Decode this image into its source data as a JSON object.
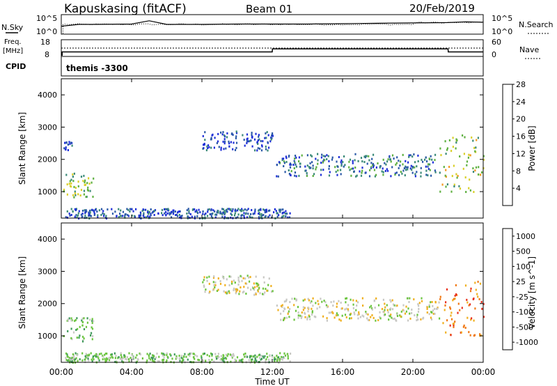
{
  "header": {
    "station": "Kapuskasing (fitACF)",
    "beam": "Beam 01",
    "date": "20/Feb/2019"
  },
  "strip_nsky": {
    "left_label": "N.Sky",
    "right_label": "N.Search",
    "left_ticks": [
      "10^5",
      "10^0"
    ],
    "right_ticks": [
      "10^5",
      "10^0"
    ]
  },
  "strip_freq": {
    "left_label_line1": "Freq.",
    "left_label_line2": "[MHz]",
    "cpid_label": "CPID",
    "right_label": "Nave",
    "left_ticks": [
      "18",
      "8"
    ],
    "right_ticks": [
      "60",
      "0"
    ],
    "cpid_text": "themis -3300"
  },
  "x_axis": {
    "ticks": [
      "00:00",
      "04:00",
      "08:00",
      "12:00",
      "16:00",
      "20:00",
      "00:00"
    ],
    "label": "Time UT"
  },
  "power_panel": {
    "ylabel": "Slant Range [km]",
    "y_ticks": [
      "1000",
      "2000",
      "3000",
      "4000"
    ],
    "colorbar_label": "Power [dB]",
    "colorbar_ticks": [
      "4",
      "8",
      "12",
      "16",
      "20",
      "24",
      "28"
    ],
    "colorbar_colors": [
      "#1f2fd8",
      "#2c5aa8",
      "#3b8a78",
      "#5fb041",
      "#d9cf2a",
      "#f39a1e",
      "#e53a1e"
    ]
  },
  "velocity_panel": {
    "ylabel": "Slant Range [km]",
    "y_ticks": [
      "1000",
      "2000",
      "3000",
      "4000"
    ],
    "colorbar_label": "Velocity [m s^-1]",
    "colorbar_ticks": [
      "1000",
      "500",
      "100",
      "25",
      "-25",
      "-100",
      "-500",
      "-1000"
    ],
    "colorbar_colors": [
      "#2a3fb3",
      "#2f6fbf",
      "#3f9a5a",
      "#6cc540",
      "#c8c8c4",
      "#f0b020",
      "#f07a18",
      "#e8321e"
    ]
  },
  "chart_data": [
    {
      "type": "line",
      "title": "N.Sky / N.Search",
      "x": [
        0,
        1,
        2,
        4,
        5,
        6,
        8,
        10,
        12,
        14,
        16,
        18,
        20,
        22,
        23,
        24
      ],
      "series": [
        {
          "name": "N.Sky",
          "values": [
            2,
            2.5,
            2.5,
            2.6,
            3.5,
            2.5,
            2.5,
            2.6,
            2.6,
            2.6,
            2.7,
            2.8,
            2.9,
            3.0,
            3.2,
            3.1
          ]
        }
      ],
      "ylim": [
        0,
        5
      ],
      "yscale": "log"
    },
    {
      "type": "line",
      "title": "Freq. / Nave",
      "x": [
        0.05,
        12,
        12.01,
        22,
        22.01,
        24
      ],
      "series": [
        {
          "name": "Freq.",
          "values": [
            10.5,
            10.5,
            12.5,
            12.5,
            10.5,
            10.5
          ]
        }
      ],
      "ylim": [
        8,
        18
      ]
    },
    {
      "type": "scatter",
      "title": "Power [dB]",
      "ylabel": "Slant Range [km]",
      "xlabel": "Time UT",
      "x_range_hours": [
        0,
        24
      ],
      "ylim": [
        180,
        4500
      ],
      "regions": [
        {
          "t0": 0.1,
          "t1": 1.8,
          "r0": 850,
          "r1": 1600,
          "value": 16
        },
        {
          "t0": 0.1,
          "t1": 0.6,
          "r0": 2300,
          "r1": 2600,
          "value": 6
        },
        {
          "t0": 8.0,
          "t1": 12.0,
          "r0": 2300,
          "r1": 2900,
          "value": 6
        },
        {
          "t0": 12.2,
          "t1": 21.5,
          "r0": 1500,
          "r1": 2200,
          "value": 10
        },
        {
          "t0": 21.5,
          "t1": 24.0,
          "r0": 1000,
          "r1": 2800,
          "value": 18
        },
        {
          "t0": 0.2,
          "t1": 13.0,
          "r0": 200,
          "r1": 500,
          "value": 8
        }
      ]
    },
    {
      "type": "scatter",
      "title": "Velocity [m s^-1]",
      "ylabel": "Slant Range [km]",
      "xlabel": "Time UT",
      "x_range_hours": [
        0,
        24
      ],
      "ylim": [
        180,
        4500
      ],
      "regions": [
        {
          "t0": 0.1,
          "t1": 1.8,
          "r0": 850,
          "r1": 1600,
          "value": 100
        },
        {
          "t0": 8.0,
          "t1": 12.0,
          "r0": 2300,
          "r1": 2900,
          "value": 0
        },
        {
          "t0": 12.2,
          "t1": 21.5,
          "r0": 1500,
          "r1": 2200,
          "value": 0
        },
        {
          "t0": 21.5,
          "t1": 24.0,
          "r0": 1000,
          "r1": 2800,
          "value": -500
        },
        {
          "t0": 0.2,
          "t1": 13.0,
          "r0": 200,
          "r1": 500,
          "value": 100
        }
      ]
    }
  ]
}
